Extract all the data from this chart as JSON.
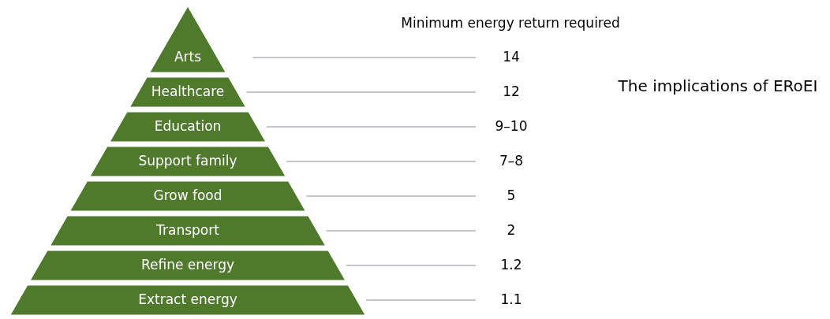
{
  "chart_data": {
    "type": "other",
    "title": "The implications of ERoEI",
    "subtitle": "Minimum energy return required",
    "categories": [
      "Arts",
      "Healthcare",
      "Education",
      "Support family",
      "Grow food",
      "Transport",
      "Refine energy",
      "Extract energy"
    ],
    "values": [
      14,
      12,
      null,
      null,
      5,
      2,
      1.2,
      1.1
    ],
    "annotations": [
      "9–10",
      "7–8"
    ],
    "data_labels": true,
    "color": "#4f7a2c"
  }
}
